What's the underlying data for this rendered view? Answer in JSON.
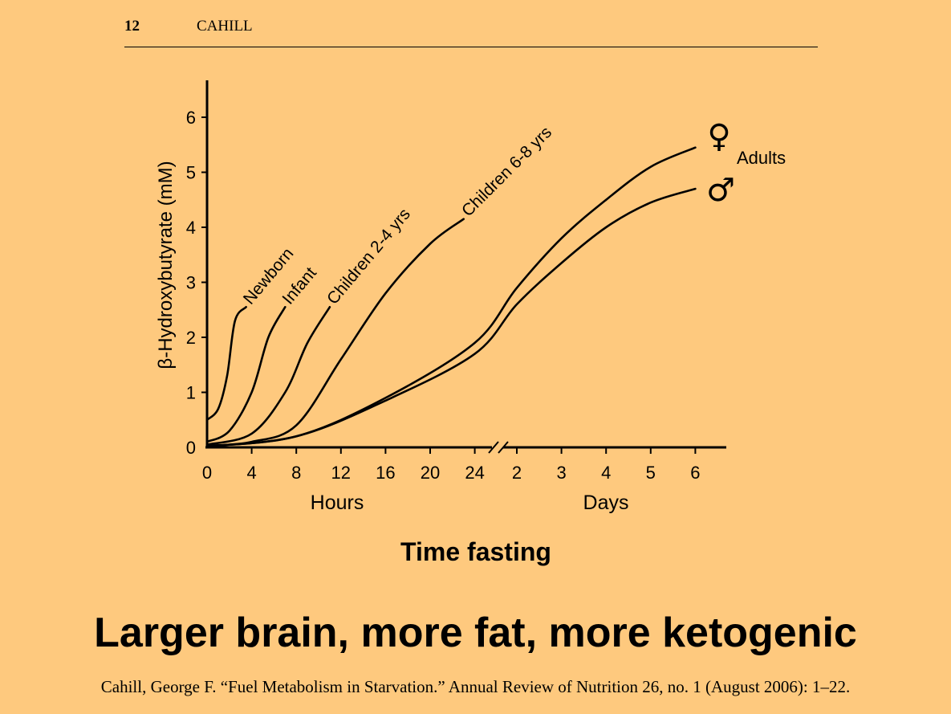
{
  "header": {
    "page_number": "12",
    "author": "CAHILL"
  },
  "chart_data": {
    "type": "line",
    "ylabel": "β-Hydroxybutyrate (mM)",
    "xlabel": "Time fasting",
    "ylim": [
      0,
      6.5
    ],
    "y_ticks": [
      "0",
      "1",
      "2",
      "3",
      "4",
      "5",
      "6"
    ],
    "x_segments": [
      {
        "label": "Hours",
        "unit": "hours",
        "ticks": [
          "0",
          "4",
          "8",
          "12",
          "16",
          "20",
          "24"
        ]
      },
      {
        "label": "Days",
        "unit": "days",
        "ticks": [
          "2",
          "3",
          "4",
          "5",
          "6"
        ]
      }
    ],
    "axis_break": "between 24 hours and 2 days",
    "grid": false,
    "series": [
      {
        "name": "Newborn",
        "points": [
          [
            0,
            "h",
            0.5
          ],
          [
            1,
            "h",
            0.7
          ],
          [
            1.8,
            "h",
            1.3
          ],
          [
            2.5,
            "h",
            2.3
          ],
          [
            3.5,
            "h",
            2.55
          ]
        ]
      },
      {
        "name": "Infant",
        "points": [
          [
            0,
            "h",
            0.1
          ],
          [
            2,
            "h",
            0.3
          ],
          [
            4,
            "h",
            1.0
          ],
          [
            5.5,
            "h",
            2.0
          ],
          [
            7,
            "h",
            2.55
          ]
        ]
      },
      {
        "name": "Children 2-4 yrs",
        "points": [
          [
            0,
            "h",
            0.05
          ],
          [
            4,
            "h",
            0.25
          ],
          [
            7,
            "h",
            1.0
          ],
          [
            9,
            "h",
            1.9
          ],
          [
            11,
            "h",
            2.55
          ]
        ]
      },
      {
        "name": "Children 6-8 yrs",
        "points": [
          [
            0,
            "h",
            0.03
          ],
          [
            4,
            "h",
            0.1
          ],
          [
            8,
            "h",
            0.4
          ],
          [
            12,
            "h",
            1.6
          ],
          [
            16,
            "h",
            2.8
          ],
          [
            20,
            "h",
            3.7
          ],
          [
            23,
            "h",
            4.15
          ]
        ]
      },
      {
        "name": "Adults (female)",
        "points": [
          [
            0,
            "h",
            0.02
          ],
          [
            8,
            "h",
            0.2
          ],
          [
            16,
            "h",
            0.9
          ],
          [
            24,
            "h",
            1.9
          ],
          [
            2,
            "d",
            2.9
          ],
          [
            3,
            "d",
            3.8
          ],
          [
            4,
            "d",
            4.5
          ],
          [
            5,
            "d",
            5.1
          ],
          [
            6,
            "d",
            5.45
          ]
        ]
      },
      {
        "name": "Adults (male)",
        "points": [
          [
            0,
            "h",
            0.02
          ],
          [
            8,
            "h",
            0.2
          ],
          [
            16,
            "h",
            0.85
          ],
          [
            24,
            "h",
            1.7
          ],
          [
            2,
            "d",
            2.6
          ],
          [
            3,
            "d",
            3.35
          ],
          [
            4,
            "d",
            4.0
          ],
          [
            5,
            "d",
            4.45
          ],
          [
            6,
            "d",
            4.7
          ]
        ]
      }
    ],
    "annotations": {
      "adults_label": "Adults",
      "female_symbol": "♀",
      "male_symbol": "♂"
    }
  },
  "slide": {
    "title": "Larger brain, more fat, more ketogenic"
  },
  "citation": "Cahill, George F. “Fuel Metabolism in Starvation.” Annual Review of Nutrition 26, no. 1 (August 2006): 1–22."
}
